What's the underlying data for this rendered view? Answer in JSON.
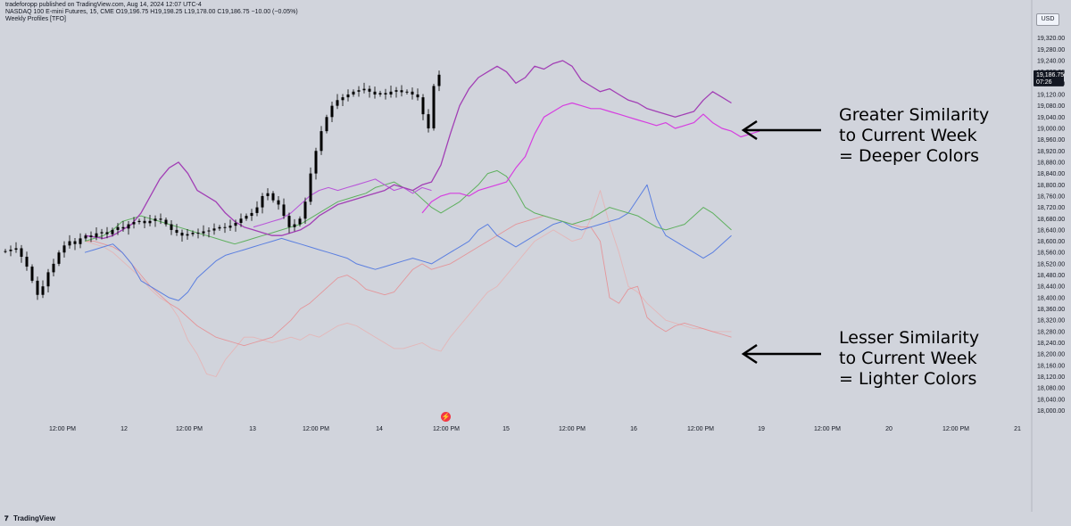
{
  "header": {
    "line1": "tradeforopp published on TradingView.com, Aug 14, 2024 12:07 UTC-4",
    "line2": "NASDAQ 100 E-mini Futures, 15, CME  O19,196.75  H19,198.25  L19,178.00  C19,186.75  −10.00 (−0.05%)",
    "line3": "Weekly Profiles [TFO]"
  },
  "currency": "USD",
  "footer": {
    "brand": "TradingView"
  },
  "annotations": {
    "top": [
      "Greater Similarity",
      "to Current Week",
      "= Deeper Colors"
    ],
    "bottom": [
      "Lesser Similarity",
      "to Current Week",
      "= Lighter Colors"
    ]
  },
  "price_box": {
    "price": "19,186.75",
    "countdown": "07:26",
    "value": 19186.75
  },
  "colors": {
    "background": "#d1d4dc",
    "candle": "#000000",
    "deep_magenta": "#a23fb5",
    "magenta": "#d63ee0",
    "mid_magenta": "#b957d9",
    "green": "#5fb05f",
    "blue": "#5b7fe0",
    "salmon": "#e8868a",
    "light_salmon": "#edaaa8",
    "price_box": "#131722",
    "arrow": "#000000"
  },
  "chart_data": {
    "type": "line",
    "x_tick_labels": [
      "12:00 PM",
      "12",
      "12:00 PM",
      "13",
      "12:00 PM",
      "14",
      "12:00 PM",
      "15",
      "12:00 PM",
      "16",
      "12:00 PM",
      "19",
      "12:00 PM",
      "20",
      "12:00 PM",
      "21"
    ],
    "y_ticks": [
      19320,
      19280,
      19240,
      19200,
      19160,
      19120,
      19080,
      19040,
      19000,
      18960,
      18920,
      18880,
      18840,
      18800,
      18760,
      18720,
      18680,
      18640,
      18600,
      18560,
      18520,
      18480,
      18440,
      18400,
      18360,
      18320,
      18280,
      18240,
      18200,
      18160,
      18120,
      18080,
      18040,
      18000
    ],
    "y_tick_labels": [
      "19,320.00",
      "19,280.00",
      "19,240.00",
      "19,200.00",
      "19,160.00",
      "19,120.00",
      "19,080.00",
      "19,040.00",
      "19,000.00",
      "18,960.00",
      "18,920.00",
      "18,880.00",
      "18,840.00",
      "18,800.00",
      "18,760.00",
      "18,720.00",
      "18,680.00",
      "18,640.00",
      "18,600.00",
      "18,560.00",
      "18,520.00",
      "18,480.00",
      "18,440.00",
      "18,400.00",
      "18,360.00",
      "18,320.00",
      "18,280.00",
      "18,240.00",
      "18,200.00",
      "18,160.00",
      "18,120.00",
      "18,080.00",
      "18,040.00",
      "18,000.00"
    ],
    "ylim": [
      17970,
      19360
    ],
    "x_count": 114,
    "candles_close": [
      18565,
      18570,
      18575,
      18545,
      18510,
      18460,
      18410,
      18440,
      18490,
      18520,
      18560,
      18585,
      18600,
      18590,
      18610,
      18620,
      18615,
      18628,
      18632,
      18625,
      18640,
      18650,
      18645,
      18660,
      18668,
      18672,
      18664,
      18672,
      18680,
      18676,
      18660,
      18640,
      18630,
      18620,
      18625,
      18630,
      18628,
      18635,
      18638,
      18645,
      18650,
      18648,
      18655,
      18665,
      18680,
      18690,
      18700,
      18720,
      18760,
      18770,
      18745,
      18730,
      18690,
      18650,
      18660,
      18680,
      18740,
      18840,
      18920,
      18990,
      19040,
      19080,
      19100,
      19110,
      19120,
      19130,
      19135,
      19140,
      19130,
      19120,
      19125,
      19120,
      19130,
      19135,
      19128,
      19130,
      19120,
      19110,
      19050,
      19000,
      19150,
      19190
    ],
    "candle_spread": 20,
    "series": [
      {
        "style": "deep",
        "values": [
          18620,
          18615,
          18610,
          18620,
          18640,
          18660,
          18700,
          18760,
          18820,
          18860,
          18880,
          18840,
          18780,
          18760,
          18740,
          18700,
          18670,
          18650,
          18640,
          18630,
          18620,
          18620,
          18630,
          18640,
          18660,
          18690,
          18710,
          18730,
          18740,
          18750,
          18760,
          18770,
          18780,
          18800,
          18790,
          18780,
          18800,
          18810,
          18870,
          18980,
          19080,
          19140,
          19180,
          19200,
          19220,
          19200,
          19160,
          19180,
          19220,
          19210,
          19230,
          19240,
          19220,
          19170,
          19150,
          19130,
          19140,
          19120,
          19100,
          19090,
          19070,
          19060,
          19050,
          19040,
          19050,
          19060,
          19100,
          19130,
          19110,
          19090
        ]
      },
      {
        "series_start": 36,
        "style": "magenta",
        "values": [
          18700,
          18740,
          18760,
          18770,
          18770,
          18760,
          18780,
          18790,
          18800,
          18810,
          18860,
          18900,
          18980,
          19040,
          19060,
          19080,
          19090,
          19080,
          19070,
          19070,
          19060,
          19050,
          19040,
          19030,
          19020,
          19010,
          19020,
          19000,
          19010,
          19020,
          19050,
          19020,
          19000,
          18990,
          18970,
          18980,
          18990
        ]
      },
      {
        "series_start": 18,
        "style": "mid",
        "values": [
          18650,
          18660,
          18670,
          18680,
          18700,
          18730,
          18760,
          18780,
          18790,
          18780,
          18790,
          18800,
          18810,
          18820,
          18800,
          18780,
          18790,
          18770,
          18790,
          18780
        ]
      },
      {
        "style": "green",
        "values": [
          18600,
          18610,
          18620,
          18640,
          18670,
          18680,
          18690,
          18680,
          18670,
          18660,
          18650,
          18640,
          18630,
          18620,
          18610,
          18600,
          18590,
          18600,
          18610,
          18620,
          18630,
          18640,
          18650,
          18660,
          18680,
          18700,
          18720,
          18740,
          18750,
          18760,
          18770,
          18790,
          18800,
          18810,
          18790,
          18780,
          18750,
          18720,
          18700,
          18720,
          18740,
          18770,
          18800,
          18840,
          18850,
          18830,
          18780,
          18720,
          18700,
          18690,
          18680,
          18670,
          18660,
          18670,
          18680,
          18700,
          18720,
          18710,
          18700,
          18690,
          18670,
          18650,
          18640,
          18650,
          18660,
          18690,
          18720,
          18700,
          18670,
          18640
        ]
      },
      {
        "style": "blue",
        "values": [
          18560,
          18570,
          18580,
          18590,
          18560,
          18520,
          18460,
          18440,
          18420,
          18400,
          18390,
          18420,
          18470,
          18500,
          18530,
          18550,
          18560,
          18570,
          18580,
          18590,
          18600,
          18610,
          18600,
          18590,
          18580,
          18570,
          18560,
          18550,
          18540,
          18520,
          18510,
          18500,
          18510,
          18520,
          18530,
          18540,
          18530,
          18520,
          18540,
          18560,
          18580,
          18600,
          18640,
          18660,
          18620,
          18600,
          18580,
          18600,
          18620,
          18640,
          18660,
          18670,
          18650,
          18640,
          18650,
          18660,
          18670,
          18680,
          18700,
          18750,
          18800,
          18680,
          18620,
          18600,
          18580,
          18560,
          18540,
          18560,
          18590,
          18620
        ]
      },
      {
        "style": "salmon",
        "values": [
          18600,
          18600,
          18590,
          18580,
          18560,
          18520,
          18480,
          18440,
          18410,
          18380,
          18360,
          18330,
          18300,
          18280,
          18260,
          18250,
          18240,
          18230,
          18240,
          18250,
          18260,
          18290,
          18320,
          18360,
          18380,
          18410,
          18440,
          18470,
          18480,
          18460,
          18430,
          18420,
          18410,
          18420,
          18460,
          18500,
          18520,
          18500,
          18510,
          18520,
          18540,
          18560,
          18580,
          18600,
          18620,
          18640,
          18660,
          18670,
          18680,
          18690,
          18680,
          18670,
          18660,
          18650,
          18650,
          18600,
          18400,
          18380,
          18430,
          18440,
          18330,
          18300,
          18280,
          18300,
          18310,
          18300,
          18290,
          18280,
          18270,
          18260
        ]
      },
      {
        "style": "light",
        "values": [
          18600,
          18590,
          18580,
          18560,
          18530,
          18500,
          18470,
          18430,
          18400,
          18380,
          18330,
          18250,
          18200,
          18130,
          18120,
          18180,
          18220,
          18260,
          18260,
          18250,
          18240,
          18250,
          18260,
          18250,
          18270,
          18260,
          18280,
          18300,
          18310,
          18300,
          18280,
          18260,
          18240,
          18220,
          18220,
          18230,
          18240,
          18220,
          18210,
          18260,
          18300,
          18340,
          18380,
          18420,
          18440,
          18480,
          18520,
          18560,
          18600,
          18620,
          18640,
          18620,
          18600,
          18610,
          18680,
          18780,
          18660,
          18560,
          18440,
          18420,
          18380,
          18350,
          18320,
          18310,
          18300,
          18290,
          18290,
          18280,
          18280,
          18280
        ]
      }
    ]
  }
}
